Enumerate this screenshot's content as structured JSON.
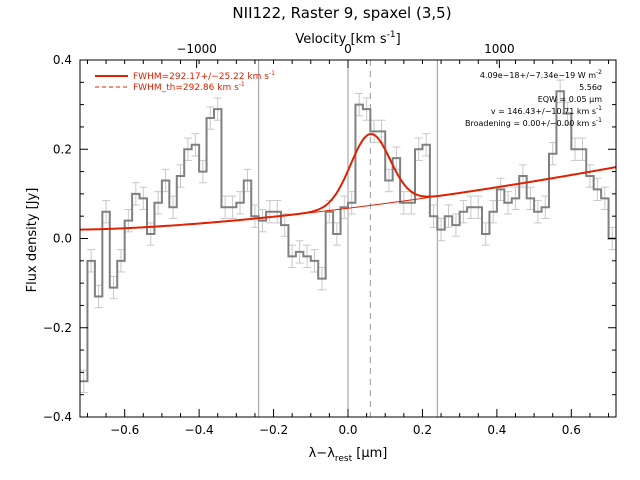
{
  "chart_data": {
    "type": "line",
    "title": "NII122, Raster 9, spaxel (3,5)",
    "xlabel": "λ−λ",
    "xlabel_sub": "rest",
    "xlabel_unit": "[μm]",
    "ylabel": "Flux density [Jy]",
    "top_axis_label": "Velocity [km s",
    "top_axis_label_sup": "-1",
    "top_axis_label_end": "]",
    "xlim": [
      -0.72,
      0.72
    ],
    "ylim": [
      -0.4,
      0.4
    ],
    "x_ticks": [
      -0.6,
      -0.4,
      -0.2,
      0.0,
      0.2,
      0.4,
      0.6
    ],
    "x_tick_labels": [
      "−0.6",
      "−0.4",
      "−0.2",
      "0.0",
      "0.2",
      "0.4",
      "0.6"
    ],
    "y_ticks": [
      -0.4,
      -0.2,
      0.0,
      0.2,
      0.4
    ],
    "y_tick_labels": [
      "−0.4",
      "−0.2",
      "0.0",
      "0.2",
      "0.4"
    ],
    "top_ticks": [
      -1000,
      0,
      1000
    ],
    "top_tick_labels": [
      "−1000",
      "0",
      "1000"
    ],
    "top_tick_positions_um": [
      -0.4066,
      0.0,
      0.4066
    ],
    "vertical_lines_solid": [
      -0.24,
      0.0,
      0.24
    ],
    "vertical_line_dashed": 0.06,
    "legend": [
      {
        "label": "FWHM=292.17+/−25.22 km s",
        "sup": "-1",
        "style": "solid",
        "color": "#e02000"
      },
      {
        "label": "FWHM_th=292.86 km s",
        "sup": "-1",
        "style": "dashed",
        "color": "#e02000"
      }
    ],
    "annotations": [
      {
        "text": "4.09e−18+/−7.34e−19 W m",
        "sup": "-2"
      },
      {
        "text": "5.56σ"
      },
      {
        "text": "EQW = 0.05 μm"
      },
      {
        "text": "v = 146.43+/−10.71 km s",
        "sup": "-1"
      },
      {
        "text": "Broadening = 0.00+/−0.00 km s",
        "sup": "-1"
      }
    ],
    "series": [
      {
        "name": "spectrum",
        "style": "step",
        "color": "#808080",
        "x": [
          -0.72,
          -0.7,
          -0.68,
          -0.66,
          -0.64,
          -0.62,
          -0.6,
          -0.58,
          -0.56,
          -0.54,
          -0.52,
          -0.5,
          -0.48,
          -0.46,
          -0.44,
          -0.42,
          -0.4,
          -0.38,
          -0.36,
          -0.34,
          -0.32,
          -0.3,
          -0.28,
          -0.26,
          -0.24,
          -0.22,
          -0.2,
          -0.18,
          -0.16,
          -0.14,
          -0.12,
          -0.1,
          -0.08,
          -0.06,
          -0.04,
          -0.02,
          0.0,
          0.02,
          0.04,
          0.06,
          0.08,
          0.1,
          0.12,
          0.14,
          0.16,
          0.18,
          0.2,
          0.22,
          0.24,
          0.26,
          0.28,
          0.3,
          0.32,
          0.34,
          0.36,
          0.38,
          0.4,
          0.42,
          0.44,
          0.46,
          0.48,
          0.5,
          0.52,
          0.54,
          0.56,
          0.58,
          0.6,
          0.62,
          0.64,
          0.66,
          0.68,
          0.7
        ],
        "y": [
          -0.32,
          -0.05,
          -0.13,
          0.06,
          -0.11,
          -0.05,
          0.04,
          0.1,
          0.09,
          0.01,
          0.08,
          0.13,
          0.07,
          0.14,
          0.2,
          0.21,
          0.15,
          0.27,
          0.29,
          0.07,
          0.07,
          0.08,
          0.13,
          0.05,
          0.04,
          0.06,
          0.06,
          0.03,
          -0.04,
          -0.03,
          -0.04,
          -0.05,
          -0.09,
          0.06,
          0.01,
          0.07,
          0.08,
          0.3,
          0.29,
          0.24,
          0.24,
          0.13,
          0.18,
          0.08,
          0.08,
          0.2,
          0.21,
          0.05,
          0.02,
          0.05,
          0.03,
          0.06,
          0.07,
          0.07,
          0.01,
          0.06,
          0.11,
          0.08,
          0.09,
          0.14,
          0.09,
          0.06,
          0.07,
          0.19,
          0.33,
          0.28,
          0.2,
          0.2,
          0.14,
          0.11,
          0.09,
          0.0
        ],
        "errors": [
          0.025,
          0.025,
          0.025,
          0.025,
          0.025,
          0.025,
          0.025,
          0.025,
          0.025,
          0.025,
          0.025,
          0.025,
          0.025,
          0.025,
          0.025,
          0.025,
          0.025,
          0.025,
          0.025,
          0.025,
          0.025,
          0.025,
          0.025,
          0.025,
          0.025,
          0.025,
          0.025,
          0.025,
          0.025,
          0.025,
          0.025,
          0.025,
          0.025,
          0.025,
          0.025,
          0.025,
          0.025,
          0.025,
          0.025,
          0.025,
          0.025,
          0.025,
          0.025,
          0.025,
          0.025,
          0.025,
          0.025,
          0.025,
          0.025,
          0.025,
          0.025,
          0.025,
          0.025,
          0.025,
          0.025,
          0.025,
          0.025,
          0.025,
          0.025,
          0.025,
          0.025,
          0.025,
          0.025,
          0.025,
          0.025,
          0.025,
          0.025,
          0.025,
          0.025,
          0.025,
          0.025,
          0.025
        ]
      },
      {
        "name": "FWHM=292.17+/−25.22 km s-1",
        "style": "solid",
        "color": "#e02000",
        "model": {
          "baseline_at_xmin": 0.02,
          "baseline_at_xmax": 0.16,
          "baseline_curvature": 0.55,
          "peak_center": 0.06,
          "peak_amplitude": 0.16,
          "peak_sigma": 0.053
        }
      },
      {
        "name": "FWHM_th=292.86 km s-1",
        "style": "dashed",
        "color": "#e02000"
      }
    ]
  }
}
